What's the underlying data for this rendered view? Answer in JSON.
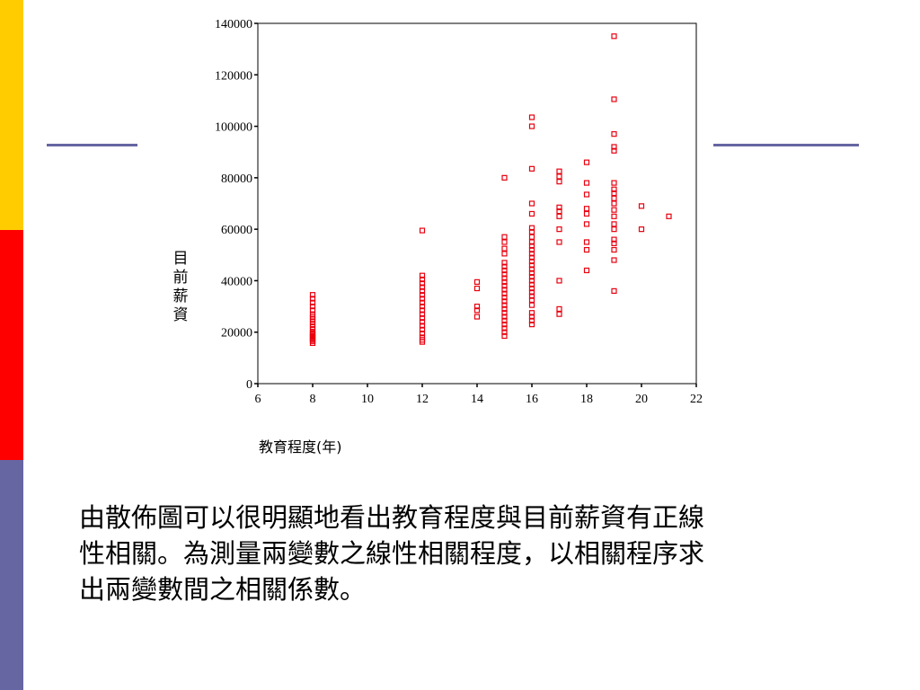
{
  "theme": {
    "bar_yellow": "#ffcc00",
    "bar_red": "#ff0000",
    "bar_slate": "#6666a3",
    "rule_color": "#6666a3",
    "marker_color": "#e8000f"
  },
  "chart_data": {
    "type": "scatter",
    "title": "",
    "xlabel": "教育程度(年)",
    "ylabel": "目前薪資",
    "xlim": [
      6,
      22
    ],
    "ylim": [
      0,
      140000
    ],
    "xticks": [
      "6",
      "8",
      "10",
      "12",
      "14",
      "16",
      "18",
      "20",
      "22"
    ],
    "yticks": [
      "0",
      "20000",
      "40000",
      "60000",
      "80000",
      "100000",
      "120000",
      "140000"
    ],
    "grid": false,
    "legend": "none",
    "points": [
      [
        8,
        15750
      ],
      [
        8,
        16500
      ],
      [
        8,
        17000
      ],
      [
        8,
        17500
      ],
      [
        8,
        18000
      ],
      [
        8,
        18500
      ],
      [
        8,
        19000
      ],
      [
        8,
        19500
      ],
      [
        8,
        20000
      ],
      [
        8,
        21000
      ],
      [
        8,
        22000
      ],
      [
        8,
        23000
      ],
      [
        8,
        24000
      ],
      [
        8,
        25000
      ],
      [
        8,
        26000
      ],
      [
        8,
        27000
      ],
      [
        8,
        28500
      ],
      [
        8,
        30000
      ],
      [
        8,
        31500
      ],
      [
        8,
        33000
      ],
      [
        8,
        34500
      ],
      [
        12,
        16200
      ],
      [
        12,
        17000
      ],
      [
        12,
        18000
      ],
      [
        12,
        19500
      ],
      [
        12,
        21000
      ],
      [
        12,
        22500
      ],
      [
        12,
        24000
      ],
      [
        12,
        25500
      ],
      [
        12,
        27000
      ],
      [
        12,
        28500
      ],
      [
        12,
        30000
      ],
      [
        12,
        31500
      ],
      [
        12,
        33000
      ],
      [
        12,
        34500
      ],
      [
        12,
        36000
      ],
      [
        12,
        37500
      ],
      [
        12,
        39000
      ],
      [
        12,
        40500
      ],
      [
        12,
        42000
      ],
      [
        12,
        59500
      ],
      [
        14,
        26000
      ],
      [
        14,
        28500
      ],
      [
        14,
        30000
      ],
      [
        14,
        37000
      ],
      [
        14,
        39500
      ],
      [
        15,
        18500
      ],
      [
        15,
        20000
      ],
      [
        15,
        21500
      ],
      [
        15,
        23000
      ],
      [
        15,
        24500
      ],
      [
        15,
        26000
      ],
      [
        15,
        27500
      ],
      [
        15,
        29000
      ],
      [
        15,
        30500
      ],
      [
        15,
        32000
      ],
      [
        15,
        33500
      ],
      [
        15,
        35000
      ],
      [
        15,
        36500
      ],
      [
        15,
        38000
      ],
      [
        15,
        39500
      ],
      [
        15,
        41000
      ],
      [
        15,
        42500
      ],
      [
        15,
        44000
      ],
      [
        15,
        45500
      ],
      [
        15,
        47000
      ],
      [
        15,
        50500
      ],
      [
        15,
        52500
      ],
      [
        15,
        55000
      ],
      [
        15,
        57000
      ],
      [
        15,
        80000
      ],
      [
        16,
        23000
      ],
      [
        16,
        24500
      ],
      [
        16,
        26000
      ],
      [
        16,
        27500
      ],
      [
        16,
        30500
      ],
      [
        16,
        32500
      ],
      [
        16,
        34000
      ],
      [
        16,
        35500
      ],
      [
        16,
        37000
      ],
      [
        16,
        38500
      ],
      [
        16,
        40000
      ],
      [
        16,
        41500
      ],
      [
        16,
        43000
      ],
      [
        16,
        44500
      ],
      [
        16,
        46000
      ],
      [
        16,
        47500
      ],
      [
        16,
        49000
      ],
      [
        16,
        50500
      ],
      [
        16,
        52000
      ],
      [
        16,
        53500
      ],
      [
        16,
        55000
      ],
      [
        16,
        57000
      ],
      [
        16,
        59000
      ],
      [
        16,
        60500
      ],
      [
        16,
        66000
      ],
      [
        16,
        70000
      ],
      [
        16,
        83500
      ],
      [
        16,
        100000
      ],
      [
        16,
        103500
      ],
      [
        17,
        27000
      ],
      [
        17,
        29000
      ],
      [
        17,
        40000
      ],
      [
        17,
        55000
      ],
      [
        17,
        60000
      ],
      [
        17,
        65000
      ],
      [
        17,
        67000
      ],
      [
        17,
        68500
      ],
      [
        17,
        78500
      ],
      [
        17,
        80500
      ],
      [
        17,
        82500
      ],
      [
        18,
        44000
      ],
      [
        18,
        52000
      ],
      [
        18,
        55000
      ],
      [
        18,
        62000
      ],
      [
        18,
        66000
      ],
      [
        18,
        68000
      ],
      [
        18,
        73500
      ],
      [
        18,
        78000
      ],
      [
        18,
        86000
      ],
      [
        19,
        36000
      ],
      [
        19,
        48000
      ],
      [
        19,
        52000
      ],
      [
        19,
        54500
      ],
      [
        19,
        56000
      ],
      [
        19,
        60000
      ],
      [
        19,
        62000
      ],
      [
        19,
        65000
      ],
      [
        19,
        67500
      ],
      [
        19,
        70000
      ],
      [
        19,
        72000
      ],
      [
        19,
        74000
      ],
      [
        19,
        75500
      ],
      [
        19,
        78000
      ],
      [
        19,
        90500
      ],
      [
        19,
        92000
      ],
      [
        19,
        97000
      ],
      [
        19,
        110500
      ],
      [
        19,
        135000
      ],
      [
        20,
        60000
      ],
      [
        20,
        69000
      ],
      [
        21,
        65000
      ]
    ]
  },
  "body": {
    "lines": [
      "由散佈圖可以很明顯地看出教育程度與目前薪資有正線",
      "性相關。為測量兩變數之線性相關程度，以相關程序求",
      "出兩變數間之相關係數。"
    ]
  }
}
